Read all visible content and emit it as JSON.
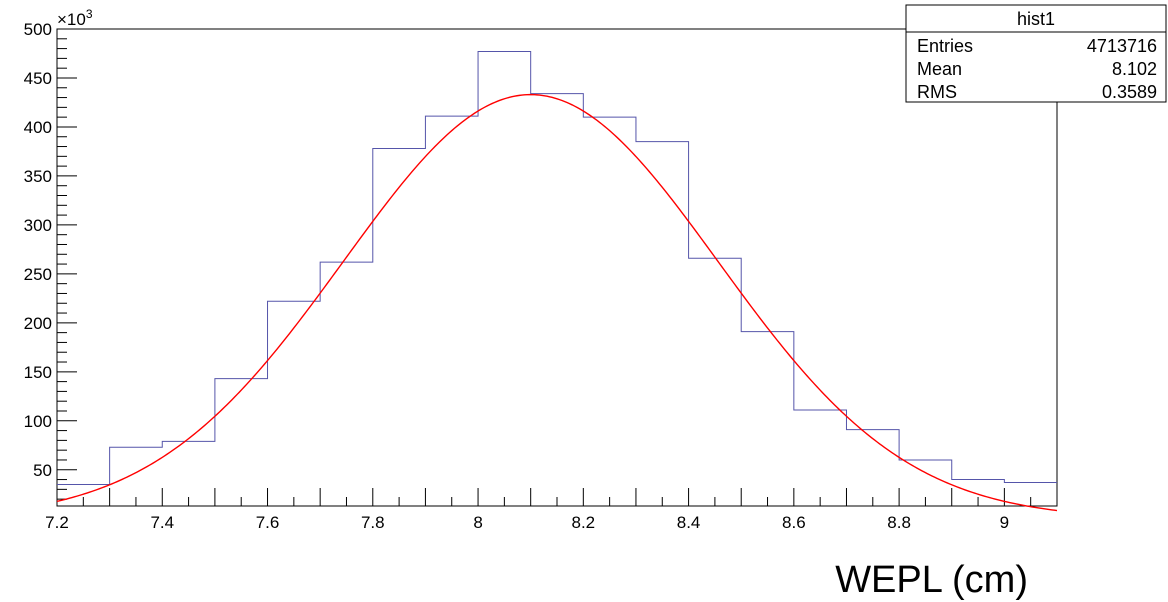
{
  "chart_data": {
    "type": "histogram",
    "title": "",
    "xlabel": "WEPL (cm)",
    "ylabel": "",
    "y_multiplier_label": "×10",
    "y_multiplier_exponent": "3",
    "xlim": [
      7.2,
      9.1
    ],
    "ylim": [
      13,
      500
    ],
    "x_ticks": [
      "7.2",
      "7.4",
      "7.6",
      "7.8",
      "8",
      "8.2",
      "8.4",
      "8.6",
      "8.8",
      "9"
    ],
    "x_tick_values": [
      7.2,
      7.4,
      7.6,
      7.8,
      8.0,
      8.2,
      8.4,
      8.6,
      8.8,
      9.0
    ],
    "y_ticks": [
      "50",
      "100",
      "150",
      "200",
      "250",
      "300",
      "350",
      "400",
      "450",
      "500"
    ],
    "y_tick_values": [
      50,
      100,
      150,
      200,
      250,
      300,
      350,
      400,
      450,
      500
    ],
    "bin_edges": [
      7.2,
      7.3,
      7.4,
      7.5,
      7.6,
      7.7,
      7.8,
      7.9,
      8.0,
      8.1,
      8.2,
      8.3,
      8.4,
      8.5,
      8.6,
      8.7,
      8.8,
      8.9,
      9.0,
      9.1
    ],
    "series": [
      {
        "type": "step",
        "color": "#5555aa",
        "values": [
          35,
          73,
          79,
          143,
          222,
          262,
          378,
          411,
          477,
          434,
          410,
          385,
          266,
          191,
          111,
          91,
          60,
          40,
          37
        ]
      },
      {
        "type": "line",
        "color": "#ff0000",
        "fit": "gaussian",
        "amplitude": 433,
        "mean": 8.1,
        "sigma": 0.356
      }
    ],
    "stats_box": {
      "title": "hist1",
      "rows": [
        {
          "label": "Entries",
          "value": "4713716"
        },
        {
          "label": "Mean",
          "value": "8.102"
        },
        {
          "label": "RMS",
          "value": "0.3589"
        }
      ]
    },
    "grid": false,
    "legend": "top-right"
  }
}
